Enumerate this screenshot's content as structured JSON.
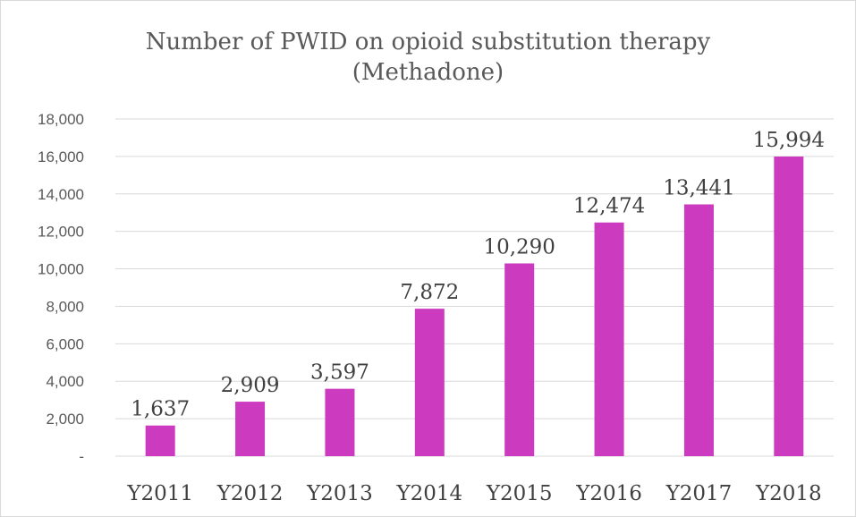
{
  "chart_data": {
    "type": "bar",
    "title": "Number of PWID on opioid substitution therapy",
    "subtitle": "(Methadone)",
    "categories": [
      "Y2011",
      "Y2012",
      "Y2013",
      "Y2014",
      "Y2015",
      "Y2016",
      "Y2017",
      "Y2018"
    ],
    "values": [
      1637,
      2909,
      3597,
      7872,
      10290,
      12474,
      13441,
      15994
    ],
    "data_labels": [
      "1,637",
      "2,909",
      "3,597",
      "7,872",
      "10,290",
      "12,474",
      "13,441",
      "15,994"
    ],
    "y_ticks": [
      0,
      2000,
      4000,
      6000,
      8000,
      10000,
      12000,
      14000,
      16000,
      18000
    ],
    "y_tick_labels": [
      "-",
      "2,000",
      "4,000",
      "6,000",
      "8,000",
      "10,000",
      "12,000",
      "14,000",
      "16,000",
      "18,000"
    ],
    "ylim": [
      0,
      18000
    ],
    "xlabel": "",
    "ylabel": "",
    "grid": true,
    "legend": "none",
    "bar_color": "#CC3BBF"
  }
}
